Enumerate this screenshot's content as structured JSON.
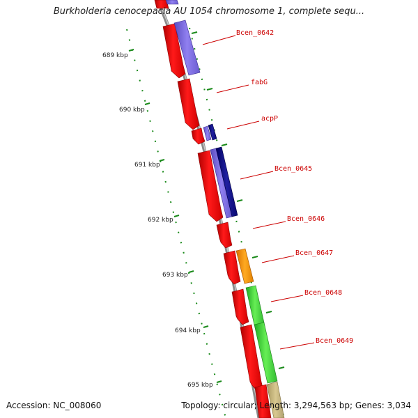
{
  "title": "Burkholderia cenocepacia AU 1054 chromosome 1, complete sequ...",
  "footer": {
    "accession": "Accession: NC_008060",
    "summary": "Topology: circular; Length: 3,294,563 bp; Genes: 3,034"
  },
  "kbp_labels": [
    "689 kbp",
    "690 kbp",
    "691 kbp",
    "692 kbp",
    "693 kbp",
    "694 kbp",
    "695 kbp"
  ],
  "gene_labels": [
    "Bcen_0642",
    "fabG",
    "acpP",
    "Bcen_0645",
    "Bcen_0646",
    "Bcen_0647",
    "Bcen_0648",
    "Bcen_0649"
  ],
  "colors": {
    "backbone": "#8a8a8a",
    "forward_strand": "#ff0000",
    "feature_lavender": "#8070e0",
    "feature_navy": "#10108a",
    "feature_orange": "#ff9900",
    "feature_green": "#44dd33",
    "feature_tan": "#c8b880",
    "ticks": "#1a8a1a",
    "label_text": "#cc0000"
  }
}
